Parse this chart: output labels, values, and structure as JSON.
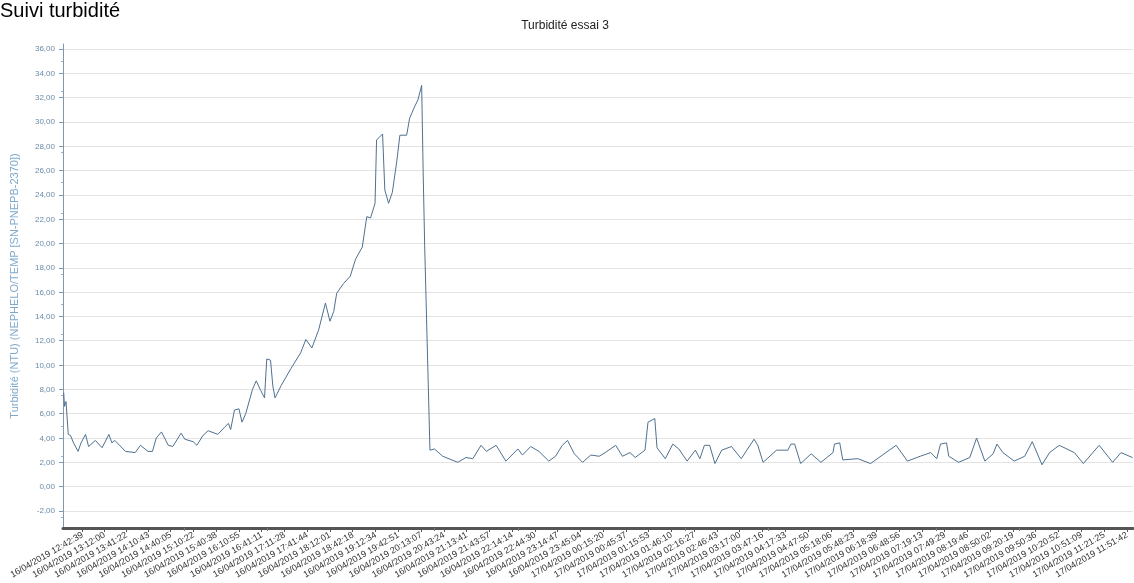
{
  "chart_data": {
    "type": "line",
    "title": "Turbidité essai 3",
    "ylabel": "Turbidité (NTU) (NEPHELO/TEMP [SN-PNEPB-2370])",
    "annotations": [
      "Suivi turbidité"
    ],
    "grid": "y",
    "marker": "none",
    "line_style": "solid",
    "xlim": [
      "2019-04-16T12:17",
      "2019-04-17T12:00"
    ],
    "ylim": [
      -3.4,
      36.4
    ],
    "yticks": [
      {
        "value": -2,
        "label": "-2,00"
      },
      {
        "value": 0,
        "label": "0,00"
      },
      {
        "value": 2,
        "label": "2,00"
      },
      {
        "value": 4,
        "label": "4,00"
      },
      {
        "value": 6,
        "label": "6,00"
      },
      {
        "value": 8,
        "label": "8,00"
      },
      {
        "value": 10,
        "label": "10,00"
      },
      {
        "value": 12,
        "label": "12,00"
      },
      {
        "value": 14,
        "label": "14,00"
      },
      {
        "value": 16,
        "label": "16,00"
      },
      {
        "value": 18,
        "label": "18,00"
      },
      {
        "value": 20,
        "label": "20,00"
      },
      {
        "value": 22,
        "label": "22,00"
      },
      {
        "value": 24,
        "label": "24,00"
      },
      {
        "value": 26,
        "label": "26,00"
      },
      {
        "value": 28,
        "label": "28,00"
      },
      {
        "value": 30,
        "label": "30,00"
      },
      {
        "value": 32,
        "label": "32,00"
      },
      {
        "value": 34,
        "label": "34,00"
      },
      {
        "value": 36,
        "label": "36,00"
      }
    ],
    "xticks": [
      {
        "value": "2019-04-16T12:42:39",
        "label": "16/04/2019 12:42:39"
      },
      {
        "value": "2019-04-16T13:12:00",
        "label": "16/04/2019 13:12:00"
      },
      {
        "value": "2019-04-16T13:41:22",
        "label": "16/04/2019 13:41:22"
      },
      {
        "value": "2019-04-16T14:10:43",
        "label": "16/04/2019 14:10:43"
      },
      {
        "value": "2019-04-16T14:40:05",
        "label": "16/04/2019 14:40:05"
      },
      {
        "value": "2019-04-16T15:10:22",
        "label": "16/04/2019 15:10:22"
      },
      {
        "value": "2019-04-16T15:40:38",
        "label": "16/04/2019 15:40:38"
      },
      {
        "value": "2019-04-16T16:10:55",
        "label": "16/04/2019 16:10:55"
      },
      {
        "value": "2019-04-16T16:41:11",
        "label": "16/04/2019 16:41:11"
      },
      {
        "value": "2019-04-16T17:11:28",
        "label": "16/04/2019 17:11:28"
      },
      {
        "value": "2019-04-16T17:41:44",
        "label": "16/04/2019 17:41:44"
      },
      {
        "value": "2019-04-16T18:12:01",
        "label": "16/04/2019 18:12:01"
      },
      {
        "value": "2019-04-16T18:42:18",
        "label": "16/04/2019 18:42:18"
      },
      {
        "value": "2019-04-16T19:12:34",
        "label": "16/04/2019 19:12:34"
      },
      {
        "value": "2019-04-16T19:42:51",
        "label": "16/04/2019 19:42:51"
      },
      {
        "value": "2019-04-16T20:13:07",
        "label": "16/04/2019 20:13:07"
      },
      {
        "value": "2019-04-16T20:43:24",
        "label": "16/04/2019 20:43:24"
      },
      {
        "value": "2019-04-16T21:13:41",
        "label": "16/04/2019 21:13:41"
      },
      {
        "value": "2019-04-16T21:43:57",
        "label": "16/04/2019 21:43:57"
      },
      {
        "value": "2019-04-16T22:14:14",
        "label": "16/04/2019 22:14:14"
      },
      {
        "value": "2019-04-16T22:44:30",
        "label": "16/04/2019 22:44:30"
      },
      {
        "value": "2019-04-16T23:14:47",
        "label": "16/04/2019 23:14:47"
      },
      {
        "value": "2019-04-16T23:45:04",
        "label": "16/04/2019 23:45:04"
      },
      {
        "value": "2019-04-17T00:15:20",
        "label": "17/04/2019 00:15:20"
      },
      {
        "value": "2019-04-17T00:45:37",
        "label": "17/04/2019 00:45:37"
      },
      {
        "value": "2019-04-17T01:15:53",
        "label": "17/04/2019 01:15:53"
      },
      {
        "value": "2019-04-17T01:46:10",
        "label": "17/04/2019 01:46:10"
      },
      {
        "value": "2019-04-17T02:16:27",
        "label": "17/04/2019 02:16:27"
      },
      {
        "value": "2019-04-17T02:46:43",
        "label": "17/04/2019 02:46:43"
      },
      {
        "value": "2019-04-17T03:17:00",
        "label": "17/04/2019 03:17:00"
      },
      {
        "value": "2019-04-17T03:47:16",
        "label": "17/04/2019 03:47:16"
      },
      {
        "value": "2019-04-17T04:17:33",
        "label": "17/04/2019 04:17:33"
      },
      {
        "value": "2019-04-17T04:47:50",
        "label": "17/04/2019 04:47:50"
      },
      {
        "value": "2019-04-17T05:18:06",
        "label": "17/04/2019 05:18:06"
      },
      {
        "value": "2019-04-17T05:48:23",
        "label": "17/04/2019 05:48:23"
      },
      {
        "value": "2019-04-17T06:18:39",
        "label": "17/04/2019 06:18:39"
      },
      {
        "value": "2019-04-17T06:48:56",
        "label": "17/04/2019 06:48:56"
      },
      {
        "value": "2019-04-17T07:19:13",
        "label": "17/04/2019 07:19:13"
      },
      {
        "value": "2019-04-17T07:49:29",
        "label": "17/04/2019 07:49:29"
      },
      {
        "value": "2019-04-17T08:19:46",
        "label": "17/04/2019 08:19:46"
      },
      {
        "value": "2019-04-17T08:50:02",
        "label": "17/04/2019 08:50:02"
      },
      {
        "value": "2019-04-17T09:20:19",
        "label": "17/04/2019 09:20:19"
      },
      {
        "value": "2019-04-17T09:50:36",
        "label": "17/04/2019 09:50:36"
      },
      {
        "value": "2019-04-17T10:20:52",
        "label": "17/04/2019 10:20:52"
      },
      {
        "value": "2019-04-17T10:51:09",
        "label": "17/04/2019 10:51:09"
      },
      {
        "value": "2019-04-17T11:21:25",
        "label": "17/04/2019 11:21:25"
      },
      {
        "value": "2019-04-17T11:51:42",
        "label": "17/04/2019 11:51:42"
      }
    ],
    "x": [
      "2019-04-16T12:18",
      "2019-04-16T12:19",
      "2019-04-16T12:21",
      "2019-04-16T12:24",
      "2019-04-16T12:27",
      "2019-04-16T12:31",
      "2019-04-16T12:37",
      "2019-04-16T12:41",
      "2019-04-16T12:47",
      "2019-04-16T12:51",
      "2019-04-16T13:00",
      "2019-04-16T13:09",
      "2019-04-16T13:18",
      "2019-04-16T13:22",
      "2019-04-16T13:26",
      "2019-04-16T13:40",
      "2019-04-16T13:53",
      "2019-04-16T14:00",
      "2019-04-16T14:10",
      "2019-04-16T14:16",
      "2019-04-16T14:21",
      "2019-04-16T14:28",
      "2019-04-16T14:37",
      "2019-04-16T14:43",
      "2019-04-16T14:54",
      "2019-04-16T14:59",
      "2019-04-16T15:10",
      "2019-04-16T15:15",
      "2019-04-16T15:23",
      "2019-04-16T15:30",
      "2019-04-16T15:43",
      "2019-04-16T15:52",
      "2019-04-16T15:57",
      "2019-04-16T16:00",
      "2019-04-16T16:05",
      "2019-04-16T16:11",
      "2019-04-16T16:15",
      "2019-04-16T16:20",
      "2019-04-16T16:29",
      "2019-04-16T16:34",
      "2019-04-16T16:40",
      "2019-04-16T16:45",
      "2019-04-16T16:48",
      "2019-04-16T16:53",
      "2019-04-16T16:56",
      "2019-04-16T16:59",
      "2019-04-16T17:07",
      "2019-04-16T17:20",
      "2019-04-16T17:33",
      "2019-04-16T17:40",
      "2019-04-16T17:48",
      "2019-04-16T17:57",
      "2019-04-16T18:06",
      "2019-04-16T18:12",
      "2019-04-16T18:17",
      "2019-04-16T18:21",
      "2019-04-16T18:30",
      "2019-04-16T18:39",
      "2019-04-16T18:46",
      "2019-04-16T18:55",
      "2019-04-16T19:01",
      "2019-04-16T19:06",
      "2019-04-16T19:12",
      "2019-04-16T19:14",
      "2019-04-16T19:22",
      "2019-04-16T19:25",
      "2019-04-16T19:30",
      "2019-04-16T19:35",
      "2019-04-16T19:41",
      "2019-04-16T19:45",
      "2019-04-16T19:54",
      "2019-04-16T19:58",
      "2019-04-16T20:05",
      "2019-04-16T20:09",
      "2019-04-16T20:14",
      "2019-04-16T20:16",
      "2019-04-16T20:18",
      "2019-04-16T20:25",
      "2019-04-16T20:31",
      "2019-04-16T20:42",
      "2019-04-16T21:02",
      "2019-04-16T21:13",
      "2019-04-16T21:22",
      "2019-04-16T21:33",
      "2019-04-16T21:40",
      "2019-04-16T21:53",
      "2019-04-16T22:06",
      "2019-04-16T22:22",
      "2019-04-16T22:28",
      "2019-04-16T22:39",
      "2019-04-16T22:50",
      "2019-04-16T23:03",
      "2019-04-16T23:12",
      "2019-04-16T23:21",
      "2019-04-16T23:28",
      "2019-04-16T23:37",
      "2019-04-16T23:48",
      "2019-04-16T23:59",
      "2019-04-17T00:10",
      "2019-04-17T00:18",
      "2019-04-17T00:32",
      "2019-04-17T00:41",
      "2019-04-17T00:51",
      "2019-04-17T00:58",
      "2019-04-17T01:11",
      "2019-04-17T01:15",
      "2019-04-17T01:24",
      "2019-04-17T01:27",
      "2019-04-17T01:38",
      "2019-04-17T01:48",
      "2019-04-17T01:56",
      "2019-04-17T02:07",
      "2019-04-17T02:18",
      "2019-04-17T02:24",
      "2019-04-17T02:30",
      "2019-04-17T02:37",
      "2019-04-17T02:44",
      "2019-04-17T02:53",
      "2019-04-17T03:06",
      "2019-04-17T03:19",
      "2019-04-17T03:36",
      "2019-04-17T03:41",
      "2019-04-17T03:48",
      "2019-04-17T04:06",
      "2019-04-17T04:21",
      "2019-04-17T04:25",
      "2019-04-17T04:30",
      "2019-04-17T04:38",
      "2019-04-17T04:52",
      "2019-04-17T05:05",
      "2019-04-17T05:21",
      "2019-04-17T05:23",
      "2019-04-17T05:30",
      "2019-04-17T05:34",
      "2019-04-17T05:54",
      "2019-04-17T06:11",
      "2019-04-17T06:29",
      "2019-04-17T06:45",
      "2019-04-17T07:00",
      "2019-04-17T07:17",
      "2019-04-17T07:31",
      "2019-04-17T07:39",
      "2019-04-17T07:44",
      "2019-04-17T07:52",
      "2019-04-17T07:55",
      "2019-04-17T08:08",
      "2019-04-17T08:23",
      "2019-04-17T08:32",
      "2019-04-17T08:43",
      "2019-04-17T08:54",
      "2019-04-17T08:59",
      "2019-04-17T09:07",
      "2019-04-17T09:22",
      "2019-04-17T09:36",
      "2019-04-17T09:46",
      "2019-04-17T09:59",
      "2019-04-17T10:09",
      "2019-04-17T10:22",
      "2019-04-17T10:42",
      "2019-04-17T10:54",
      "2019-04-17T11:15",
      "2019-04-17T11:33",
      "2019-04-17T11:44",
      "2019-04-17T11:59"
    ],
    "series": [
      {
        "color": "#4f7190",
        "values": [
          7.7,
          6.6,
          7.0,
          4.3,
          4.2,
          3.6,
          2.9,
          3.6,
          4.3,
          3.3,
          3.8,
          3.2,
          4.3,
          3.6,
          3.8,
          2.9,
          2.8,
          3.4,
          2.9,
          2.9,
          4.0,
          4.5,
          3.4,
          3.3,
          4.4,
          3.9,
          3.7,
          3.4,
          4.2,
          4.6,
          4.3,
          4.9,
          5.2,
          4.7,
          6.3,
          6.4,
          5.3,
          6.0,
          8.0,
          8.7,
          7.9,
          7.3,
          10.5,
          10.4,
          8.3,
          7.3,
          8.3,
          9.7,
          11.0,
          12.1,
          11.4,
          12.9,
          15.1,
          13.6,
          14.4,
          15.9,
          16.7,
          17.3,
          18.7,
          19.7,
          22.2,
          22.1,
          23.3,
          28.5,
          29.0,
          24.4,
          23.3,
          24.2,
          26.8,
          28.9,
          28.9,
          30.3,
          31.3,
          31.8,
          33.0,
          25.8,
          19.8,
          3.0,
          3.1,
          2.5,
          2.0,
          2.4,
          2.3,
          3.4,
          2.9,
          3.4,
          2.1,
          3.1,
          2.6,
          3.3,
          2.9,
          2.1,
          2.5,
          3.4,
          3.8,
          2.7,
          2.0,
          2.6,
          2.5,
          2.8,
          3.4,
          2.5,
          2.8,
          2.4,
          3.0,
          5.3,
          5.6,
          3.2,
          2.3,
          3.5,
          3.1,
          2.1,
          3.0,
          2.3,
          3.4,
          3.4,
          1.9,
          3.0,
          3.3,
          2.3,
          3.9,
          3.4,
          2.0,
          3.0,
          3.0,
          3.5,
          3.5,
          1.9,
          2.7,
          2.0,
          2.8,
          3.5,
          3.6,
          2.2,
          2.3,
          1.9,
          2.7,
          3.4,
          2.1,
          2.5,
          2.8,
          2.3,
          3.5,
          3.6,
          2.5,
          2.0,
          2.4,
          4.0,
          2.1,
          2.7,
          3.5,
          2.8,
          2.1,
          2.5,
          3.7,
          1.8,
          2.8,
          3.4,
          2.8,
          1.9,
          3.4,
          2.0,
          2.8,
          2.4
        ]
      }
    ]
  }
}
